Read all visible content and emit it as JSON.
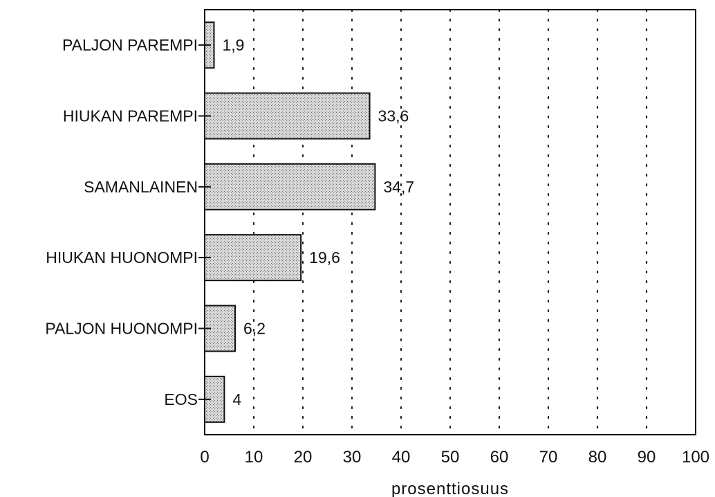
{
  "chart_data": {
    "type": "bar",
    "orientation": "horizontal",
    "categories": [
      "PALJON PAREMPI",
      "HIUKAN PAREMPI",
      "SAMANLAINEN",
      "HIUKAN HUONOMPI",
      "PALJON HUONOMPI",
      "EOS"
    ],
    "values": [
      1.9,
      33.6,
      34.7,
      19.6,
      6.2,
      4
    ],
    "data_labels": [
      "1,9",
      "33,6",
      "34,7",
      "19,6",
      "6,2",
      "4"
    ],
    "xlabel": "prosenttiosuus",
    "ylabel": "",
    "title": "",
    "xlim": [
      0,
      100
    ],
    "xticks": [
      0,
      10,
      20,
      30,
      40,
      50,
      60,
      70,
      80,
      90,
      100
    ],
    "grid": "vertical dotted",
    "legend": "none",
    "colors": {
      "bar_fill": "#cfcfcf",
      "bar_stroke": "#111111",
      "grid": "#222222"
    }
  }
}
